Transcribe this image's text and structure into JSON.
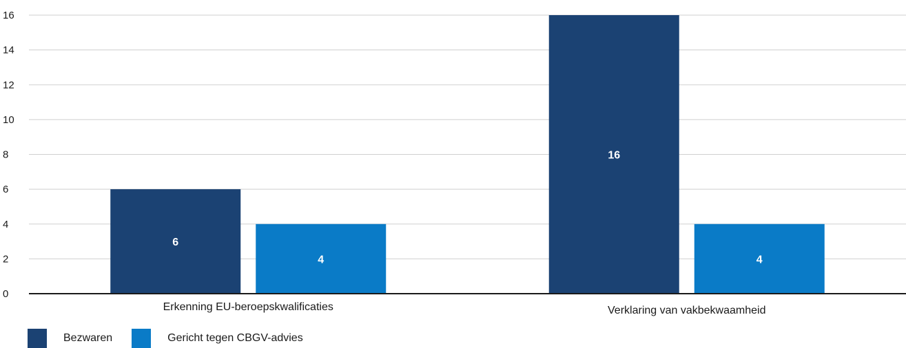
{
  "chart_data": {
    "type": "bar",
    "categories": [
      "Erkenning EU-beroepskwalificaties",
      "Verklaring van vakbekwaamheid"
    ],
    "series": [
      {
        "name": "Bezwaren",
        "values": [
          6,
          16
        ],
        "color": "#1b4273"
      },
      {
        "name": "Gericht tegen CBGV-advies",
        "values": [
          4,
          4
        ],
        "color": "#0a7bc7"
      }
    ],
    "ylim": [
      0,
      16
    ],
    "yticks": [
      0,
      2,
      4,
      6,
      8,
      10,
      12,
      14,
      16
    ],
    "grid": true,
    "legend_position": "bottom-left",
    "title": "",
    "xlabel": "",
    "ylabel": ""
  }
}
